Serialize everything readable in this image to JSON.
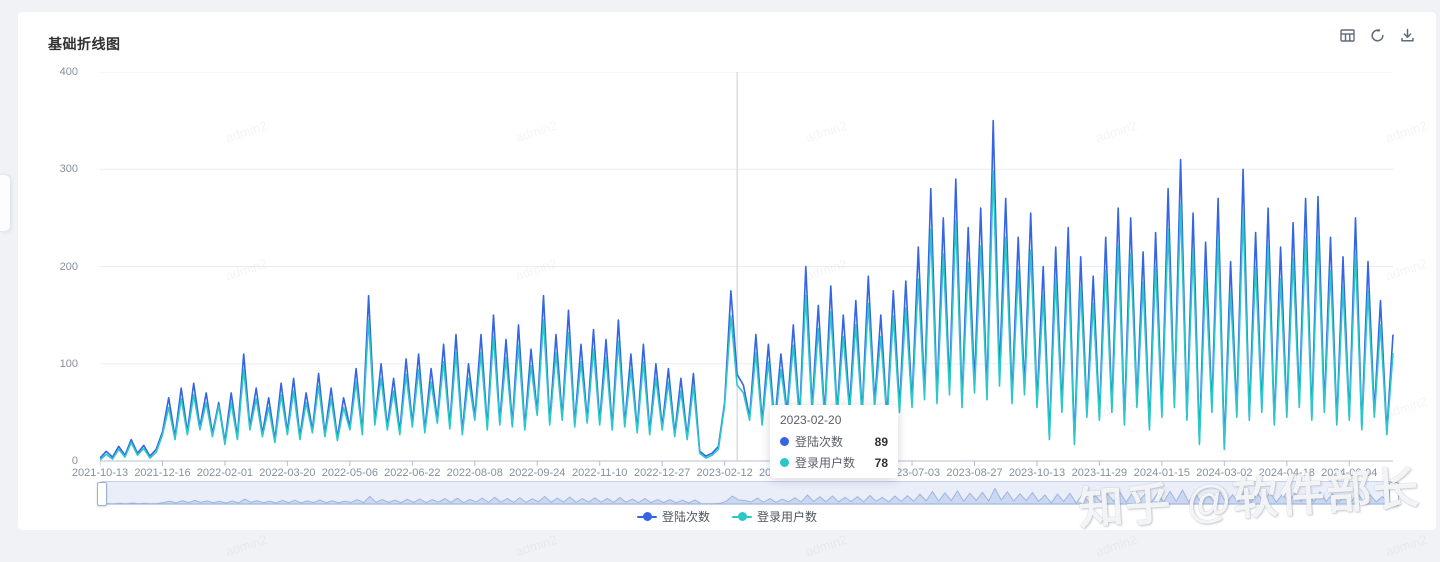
{
  "card": {
    "title": "基础折线图"
  },
  "toolbox": {
    "icons": [
      {
        "name": "data-view-icon"
      },
      {
        "name": "refresh-icon"
      },
      {
        "name": "download-icon"
      }
    ]
  },
  "watermarks": {
    "grid_text": "admin2",
    "zhihu": "知乎 @软件部长"
  },
  "chart_data": {
    "type": "line",
    "title": "基础折线图",
    "xlabel": "",
    "ylabel": "",
    "ylim": [
      0,
      400
    ],
    "y_ticks": [
      0,
      100,
      200,
      300,
      400
    ],
    "grid": true,
    "legend_position": "bottom",
    "x_tick_labels": [
      "2021-10-13",
      "2021-12-16",
      "2022-02-01",
      "2022-03-20",
      "2022-05-06",
      "2022-06-22",
      "2022-08-08",
      "2022-09-24",
      "2022-11-10",
      "2022-12-27",
      "2023-02-12",
      "2023-03-31",
      "2023-05-17",
      "2023-07-03",
      "2023-08-27",
      "2023-10-13",
      "2023-11-29",
      "2024-01-15",
      "2024-03-02",
      "2024-04-18",
      "2024-06-04"
    ],
    "points_per_label": 10,
    "series": [
      {
        "name": "登陆次数",
        "color": "#3665e3",
        "values": [
          3,
          10,
          4,
          15,
          6,
          22,
          8,
          16,
          5,
          12,
          30,
          65,
          25,
          75,
          30,
          80,
          35,
          70,
          28,
          60,
          20,
          70,
          25,
          110,
          35,
          75,
          28,
          65,
          22,
          80,
          30,
          85,
          25,
          70,
          32,
          90,
          28,
          75,
          24,
          65,
          35,
          95,
          30,
          170,
          40,
          100,
          35,
          85,
          30,
          105,
          38,
          110,
          32,
          95,
          42,
          120,
          36,
          130,
          30,
          100,
          45,
          130,
          35,
          150,
          40,
          125,
          38,
          140,
          35,
          115,
          50,
          170,
          40,
          130,
          45,
          155,
          38,
          120,
          42,
          135,
          40,
          125,
          35,
          145,
          38,
          110,
          32,
          120,
          30,
          100,
          35,
          95,
          28,
          85,
          25,
          90,
          10,
          5,
          8,
          15,
          60,
          175,
          89,
          78,
          45,
          130,
          40,
          120,
          38,
          110,
          50,
          140,
          45,
          200,
          55,
          160,
          48,
          180,
          50,
          150,
          55,
          165,
          50,
          190,
          60,
          150,
          45,
          175,
          55,
          185,
          60,
          220,
          70,
          280,
          65,
          250,
          75,
          290,
          60,
          240,
          80,
          260,
          70,
          350,
          90,
          270,
          65,
          230,
          75,
          255,
          60,
          200,
          25,
          220,
          55,
          240,
          20,
          210,
          50,
          190,
          45,
          230,
          55,
          260,
          40,
          250,
          60,
          215,
          35,
          235,
          50,
          280,
          60,
          310,
          45,
          255,
          20,
          225,
          55,
          270,
          15,
          205,
          50,
          300,
          45,
          235,
          55,
          260,
          40,
          220,
          50,
          245,
          60,
          270,
          45,
          272,
          55,
          230,
          40,
          210,
          45,
          250,
          35,
          205,
          50,
          165,
          30,
          130
        ]
      },
      {
        "name": "登录用户数",
        "color": "#2cc7c9",
        "values": [
          1,
          7,
          2,
          12,
          4,
          19,
          6,
          13,
          3,
          9,
          27,
          55,
          22,
          64,
          27,
          68,
          32,
          60,
          25,
          57,
          17,
          60,
          22,
          94,
          32,
          64,
          25,
          55,
          19,
          68,
          27,
          72,
          22,
          60,
          29,
          77,
          25,
          64,
          21,
          55,
          32,
          81,
          27,
          145,
          37,
          85,
          32,
          72,
          27,
          89,
          35,
          94,
          29,
          81,
          39,
          102,
          33,
          111,
          27,
          85,
          42,
          111,
          32,
          128,
          37,
          106,
          35,
          119,
          32,
          98,
          47,
          145,
          37,
          111,
          42,
          132,
          35,
          102,
          39,
          115,
          37,
          106,
          32,
          123,
          35,
          94,
          29,
          102,
          27,
          85,
          32,
          81,
          25,
          72,
          22,
          77,
          8,
          3,
          6,
          12,
          57,
          149,
          78,
          70,
          42,
          111,
          37,
          102,
          35,
          94,
          47,
          119,
          42,
          170,
          50,
          136,
          45,
          153,
          47,
          128,
          50,
          140,
          47,
          162,
          55,
          128,
          42,
          149,
          50,
          157,
          55,
          187,
          63,
          238,
          59,
          213,
          68,
          247,
          55,
          204,
          70,
          221,
          63,
          298,
          77,
          230,
          59,
          196,
          68,
          217,
          55,
          170,
          22,
          187,
          50,
          204,
          17,
          179,
          45,
          162,
          42,
          196,
          50,
          221,
          37,
          213,
          55,
          183,
          32,
          200,
          45,
          238,
          55,
          264,
          42,
          217,
          17,
          191,
          50,
          230,
          12,
          174,
          45,
          255,
          42,
          200,
          50,
          221,
          37,
          187,
          45,
          208,
          55,
          230,
          42,
          231,
          50,
          196,
          37,
          179,
          42,
          213,
          32,
          174,
          45,
          140,
          27,
          111
        ]
      }
    ],
    "tooltip": {
      "date": "2023-02-20",
      "point_index": 102,
      "rows": [
        {
          "label": "登陆次数",
          "value": "89",
          "color": "#3665e3"
        },
        {
          "label": "登录用户数",
          "value": "78",
          "color": "#2cc7c9"
        }
      ]
    },
    "datazoom": {
      "range": [
        0,
        100
      ]
    }
  }
}
